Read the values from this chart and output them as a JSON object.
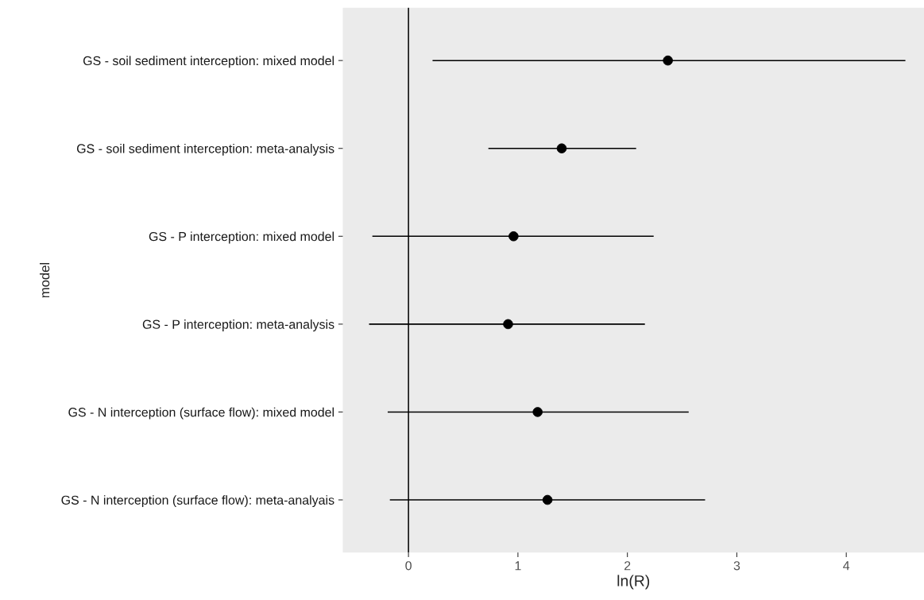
{
  "chart_data": {
    "type": "scatter",
    "orientation": "horizontal",
    "xlabel": "ln(R)",
    "ylabel": "model",
    "categories": [
      "GS - soil sediment interception: mixed model",
      "GS - soil sediment interception: meta-analysis",
      "GS - P interception: mixed model",
      "GS - P interception: meta-analysis",
      "GS - N interception (surface flow): mixed model",
      "GS - N interception (surface flow): meta-analyais"
    ],
    "values": [
      2.37,
      1.4,
      0.96,
      0.91,
      1.18,
      1.27
    ],
    "errors": [
      [
        0.22,
        4.54
      ],
      [
        0.73,
        2.08
      ],
      [
        -0.33,
        2.24
      ],
      [
        -0.36,
        2.16
      ],
      [
        -0.19,
        2.56
      ],
      [
        -0.17,
        2.71
      ]
    ],
    "color": "#000000",
    "marker": "circle",
    "xlim": [
      -0.6,
      4.71
    ],
    "xticks": [
      0,
      1,
      2,
      3,
      4
    ],
    "ref_lines": [
      {
        "axis": "x",
        "value": 0,
        "color": "#000000"
      }
    ],
    "grid": false
  }
}
